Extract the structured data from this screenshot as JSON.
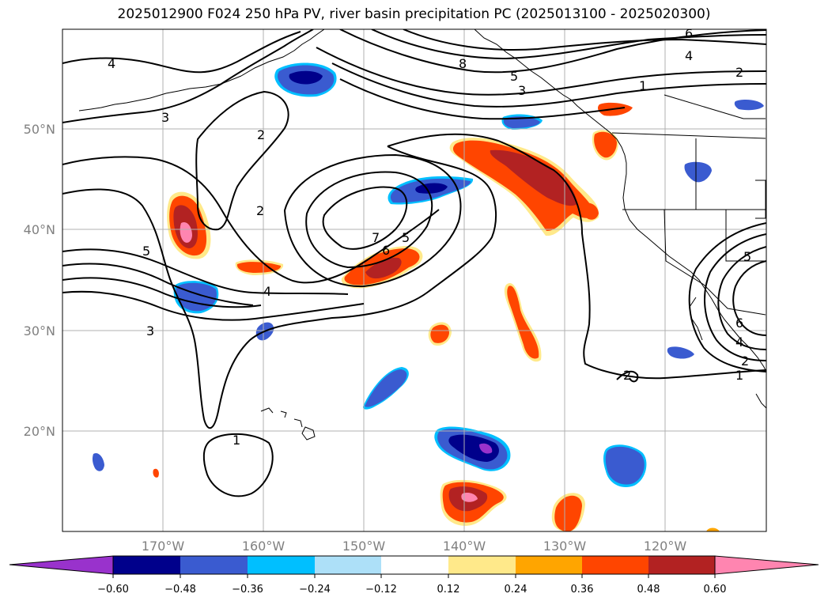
{
  "title": "2025012900 F024 250 hPa PV, river basin precipitation PC (2025013100 - 2025020300)",
  "longitude_labels": [
    "170°W",
    "160°W",
    "150°W",
    "140°W",
    "130°W",
    "120°W"
  ],
  "latitude_labels": [
    "50°N",
    "40°N",
    "30°N",
    "20°N"
  ],
  "pv_contour_labels": [
    "6",
    "4",
    "2",
    "1",
    "8",
    "5",
    "3",
    "4",
    "3",
    "2",
    "2",
    "5",
    "7",
    "6",
    "5",
    "4",
    "3",
    "1",
    "5",
    "6",
    "4",
    "2",
    "1",
    "2"
  ],
  "colorbar": {
    "tick_labels": [
      "−0.60",
      "−0.48",
      "−0.36",
      "−0.24",
      "−0.12",
      "0.12",
      "0.24",
      "0.36",
      "0.48",
      "0.60"
    ],
    "colors": [
      "#9932cc",
      "#00008b",
      "#3a5bd0",
      "#00bfff",
      "#ade0f8",
      "#ffffff",
      "#ffe98a",
      "#ffa500",
      "#ff4500",
      "#b22222",
      "#ff85b0"
    ]
  },
  "colors": {
    "contour": "#000000",
    "grid": "#b0b0b0",
    "coast": "#000000",
    "tick_text": "#808080"
  }
}
